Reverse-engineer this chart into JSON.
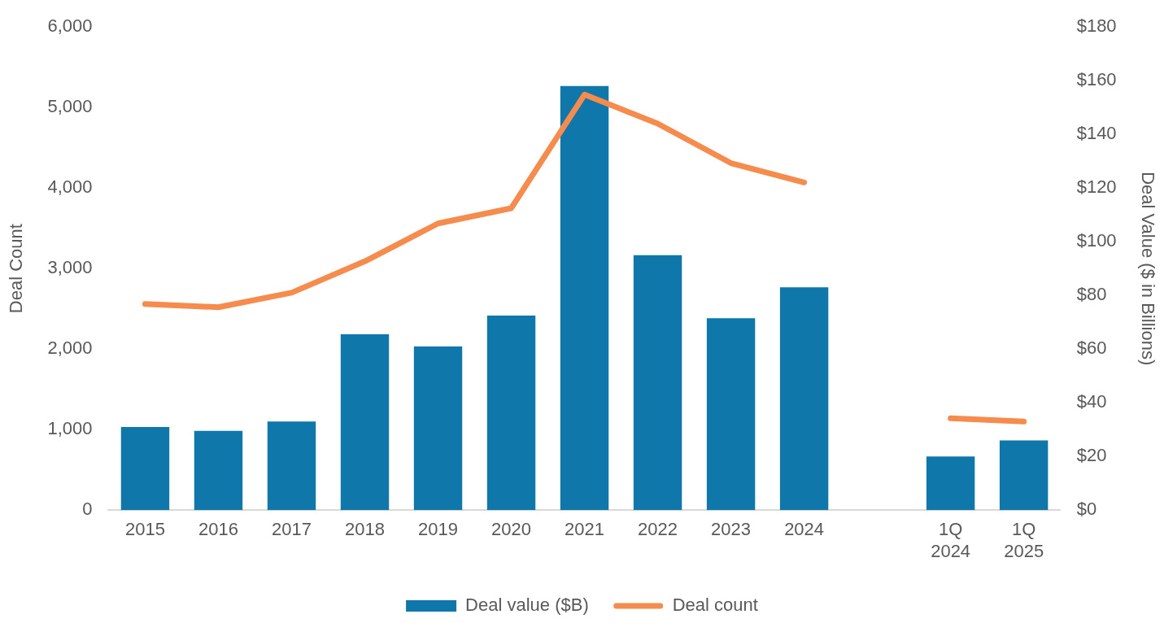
{
  "chart_data": {
    "type": "bar",
    "ylabel": "Deal Count",
    "y2label": "Deal Value ($ in Billions)",
    "categories": [
      "2015",
      "2016",
      "2017",
      "2018",
      "2019",
      "2020",
      "2021",
      "2022",
      "2023",
      "2024",
      null,
      "1Q 2024",
      "1Q 2025"
    ],
    "series": [
      {
        "name": "Deal value ($B)",
        "axis": "y2",
        "color": "#0f77a9",
        "values": [
          31,
          29.5,
          33,
          65.5,
          61,
          72.5,
          158,
          95,
          71.5,
          83,
          null,
          20,
          26
        ]
      },
      {
        "name": "Deal count",
        "type": "line",
        "axis": "y",
        "color": "#f58b4c",
        "values": [
          2560,
          2520,
          2700,
          3090,
          3560,
          3750,
          5160,
          4800,
          4310,
          4070,
          null,
          1140,
          1100
        ]
      }
    ],
    "ylim": [
      0,
      6000
    ],
    "yticks": [
      {
        "value": 0,
        "label": "0"
      },
      {
        "value": 1000,
        "label": "1,000"
      },
      {
        "value": 2000,
        "label": "2,000"
      },
      {
        "value": 3000,
        "label": "3,000"
      },
      {
        "value": 4000,
        "label": "4,000"
      },
      {
        "value": 5000,
        "label": "5,000"
      },
      {
        "value": 6000,
        "label": "6,000"
      }
    ],
    "y2lim": [
      0,
      180
    ],
    "y2ticks": [
      {
        "value": 0,
        "label": "$0"
      },
      {
        "value": 20,
        "label": "$20"
      },
      {
        "value": 40,
        "label": "$40"
      },
      {
        "value": 60,
        "label": "$60"
      },
      {
        "value": 80,
        "label": "$80"
      },
      {
        "value": 100,
        "label": "$100"
      },
      {
        "value": 120,
        "label": "$120"
      },
      {
        "value": 140,
        "label": "$140"
      },
      {
        "value": 160,
        "label": "$160"
      },
      {
        "value": 180,
        "label": "$180"
      }
    ],
    "grid": false,
    "legend": "bottom",
    "marker": "none",
    "line_style": "solid"
  }
}
